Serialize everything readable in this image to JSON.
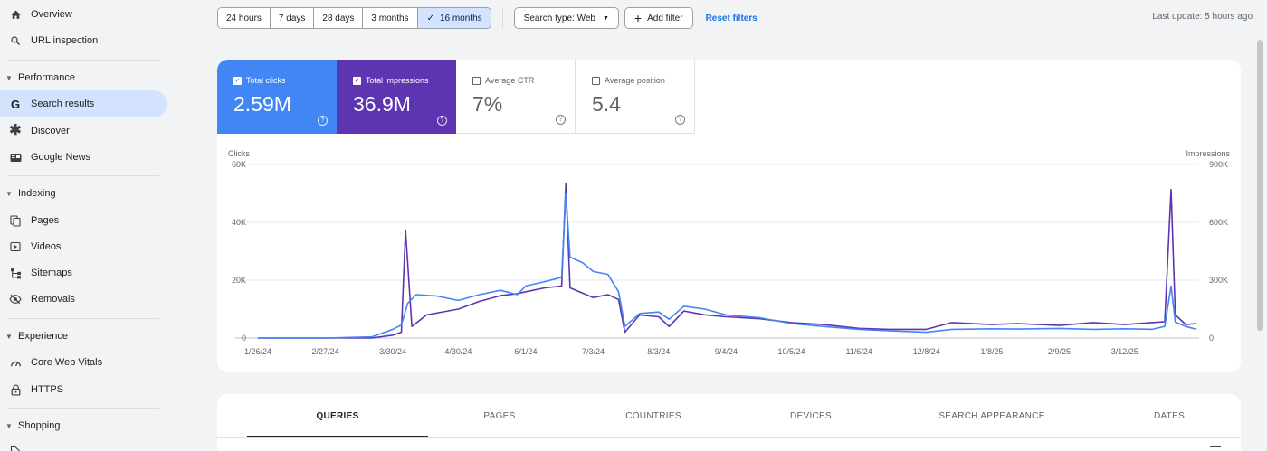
{
  "sidebar": {
    "overview": "Overview",
    "url_inspection": "URL inspection",
    "performance_section": "Performance",
    "search_results": "Search results",
    "discover": "Discover",
    "google_news": "Google News",
    "indexing_section": "Indexing",
    "pages": "Pages",
    "videos": "Videos",
    "sitemaps": "Sitemaps",
    "removals": "Removals",
    "experience_section": "Experience",
    "core_web_vitals": "Core Web Vitals",
    "https": "HTTPS",
    "shopping_section": "Shopping"
  },
  "toolbar": {
    "ranges": [
      "24 hours",
      "7 days",
      "28 days",
      "3 months",
      "16 months"
    ],
    "selected_range": "16 months",
    "search_type": "Search type: Web",
    "add_filter": "Add filter",
    "reset_filters": "Reset filters",
    "last_update": "Last update: 5 hours ago"
  },
  "metrics": {
    "clicks": {
      "label": "Total clicks",
      "value": "2.59M",
      "checked": true
    },
    "impressions": {
      "label": "Total impressions",
      "value": "36.9M",
      "checked": true
    },
    "ctr": {
      "label": "Average CTR",
      "value": "7%",
      "checked": false
    },
    "position": {
      "label": "Average position",
      "value": "5.4",
      "checked": false
    }
  },
  "colors": {
    "clicks": "#4285f4",
    "impressions": "#5e35b1",
    "accent": "#1a73e8"
  },
  "chart_data": {
    "type": "line",
    "left_axis_label": "Clicks",
    "right_axis_label": "Impressions",
    "left_ticks": [
      "60K",
      "40K",
      "20K",
      "0"
    ],
    "right_ticks": [
      "900K",
      "600K",
      "300K",
      "0"
    ],
    "left_ylim": [
      0,
      60000
    ],
    "right_ylim": [
      0,
      900000
    ],
    "x_ticks": [
      "1/26/24",
      "2/27/24",
      "3/30/24",
      "4/30/24",
      "6/1/24",
      "7/3/24",
      "8/3/24",
      "9/4/24",
      "10/5/24",
      "11/6/24",
      "12/8/24",
      "1/8/25",
      "2/9/25",
      "3/12/25"
    ],
    "series": [
      {
        "name": "Clicks",
        "axis": "left",
        "x": [
          "1/26/24",
          "2/27/24",
          "3/20/24",
          "3/30/24",
          "4/3/24",
          "4/6/24",
          "4/10/24",
          "4/20/24",
          "4/30/24",
          "5/10/24",
          "5/20/24",
          "5/28/24",
          "6/1/24",
          "6/10/24",
          "6/18/24",
          "6/20/24",
          "6/22/24",
          "6/28/24",
          "7/3/24",
          "7/10/24",
          "7/15/24",
          "7/18/24",
          "7/25/24",
          "8/3/24",
          "8/8/24",
          "8/15/24",
          "8/25/24",
          "9/4/24",
          "9/20/24",
          "10/5/24",
          "10/20/24",
          "11/6/24",
          "11/20/24",
          "12/8/24",
          "12/20/24",
          "1/8/25",
          "1/20/25",
          "2/9/25",
          "2/25/25",
          "3/12/25",
          "3/25/25",
          "3/31/25",
          "4/3/25",
          "4/5/25",
          "4/10/25",
          "4/15/25"
        ],
        "values": [
          0,
          0,
          400,
          3000,
          4500,
          12000,
          15000,
          14500,
          13000,
          15000,
          16500,
          15000,
          18000,
          19500,
          21000,
          50000,
          28000,
          26000,
          23000,
          22000,
          16000,
          4000,
          8500,
          9000,
          6500,
          11000,
          10000,
          8000,
          7000,
          5000,
          4000,
          3000,
          2500,
          2000,
          3000,
          3200,
          3100,
          3300,
          3000,
          3200,
          3000,
          4000,
          18000,
          5500,
          4000,
          3000
        ]
      },
      {
        "name": "Impressions",
        "axis": "right",
        "x": [
          "1/26/24",
          "2/27/24",
          "3/20/24",
          "3/30/24",
          "4/3/24",
          "4/5/24",
          "4/8/24",
          "4/15/24",
          "4/30/24",
          "5/10/24",
          "5/20/24",
          "5/28/24",
          "6/1/24",
          "6/10/24",
          "6/18/24",
          "6/20/24",
          "6/22/24",
          "7/3/24",
          "7/10/24",
          "7/15/24",
          "7/18/24",
          "7/25/24",
          "8/3/24",
          "8/8/24",
          "8/15/24",
          "8/25/24",
          "9/4/24",
          "9/20/24",
          "10/5/24",
          "10/20/24",
          "11/6/24",
          "11/20/24",
          "12/8/24",
          "12/20/24",
          "1/8/25",
          "1/20/25",
          "2/9/25",
          "2/25/25",
          "3/12/25",
          "3/25/25",
          "3/31/25",
          "4/3/25",
          "4/5/25",
          "4/10/25",
          "4/15/25"
        ],
        "values": [
          0,
          0,
          0,
          15000,
          30000,
          560000,
          60000,
          120000,
          150000,
          190000,
          220000,
          230000,
          240000,
          260000,
          270000,
          800000,
          260000,
          210000,
          225000,
          200000,
          30000,
          120000,
          110000,
          60000,
          140000,
          120000,
          110000,
          100000,
          80000,
          70000,
          50000,
          45000,
          45000,
          80000,
          70000,
          75000,
          65000,
          80000,
          70000,
          80000,
          85000,
          770000,
          120000,
          70000,
          75000
        ]
      }
    ],
    "grid": true
  },
  "tabs": [
    "QUERIES",
    "PAGES",
    "COUNTRIES",
    "DEVICES",
    "SEARCH APPEARANCE",
    "DATES"
  ]
}
